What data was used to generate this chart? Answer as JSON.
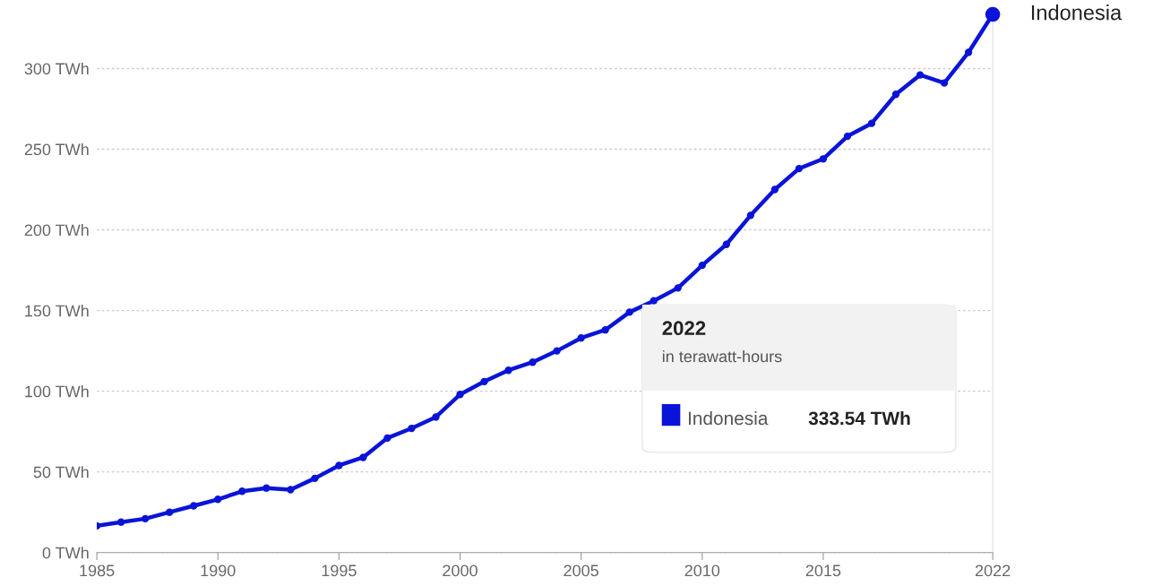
{
  "chart_data": {
    "type": "line",
    "x": [
      1985,
      1986,
      1987,
      1988,
      1989,
      1990,
      1991,
      1992,
      1993,
      1994,
      1995,
      1996,
      1997,
      1998,
      1999,
      2000,
      2001,
      2002,
      2003,
      2004,
      2005,
      2006,
      2007,
      2008,
      2009,
      2010,
      2011,
      2012,
      2013,
      2014,
      2015,
      2016,
      2017,
      2018,
      2019,
      2020,
      2021,
      2022
    ],
    "series": [
      {
        "name": "Indonesia",
        "color": "#0a14d8",
        "values": [
          16.6,
          18.9,
          21,
          25,
          29,
          33,
          38,
          40,
          39,
          46,
          54,
          59,
          71,
          77,
          84,
          98,
          106,
          113,
          118,
          125,
          133,
          138,
          149,
          156,
          164,
          178,
          191,
          209,
          225,
          238,
          244,
          258,
          266,
          284,
          296,
          291,
          310,
          333.54
        ]
      }
    ],
    "xlim": [
      1985,
      2022
    ],
    "xticks": [
      1985,
      1990,
      1995,
      2000,
      2005,
      2010,
      2015,
      2022
    ],
    "ylim": [
      0,
      337
    ],
    "yticks": [
      {
        "value": 0,
        "label": "0 TWh"
      },
      {
        "value": 50,
        "label": "50 TWh"
      },
      {
        "value": 100,
        "label": "100 TWh"
      },
      {
        "value": 150,
        "label": "150 TWh"
      },
      {
        "value": 200,
        "label": "200 TWh"
      },
      {
        "value": 250,
        "label": "250 TWh"
      },
      {
        "value": 300,
        "label": "300 TWh"
      }
    ],
    "grid": "y",
    "marker": "circle",
    "line_style": "solid",
    "legend": "right",
    "annotations": [
      "2022",
      "in terawatt-hours",
      "333.54 TWh"
    ]
  }
}
